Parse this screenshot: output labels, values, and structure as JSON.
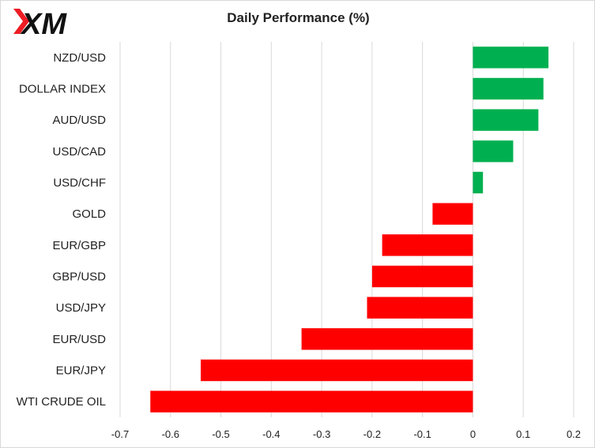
{
  "brand": {
    "logo_text": "XM"
  },
  "chart_data": {
    "type": "bar",
    "orientation": "horizontal",
    "title": "Daily Performance  (%)",
    "categories": [
      "NZD/USD",
      "DOLLAR INDEX",
      "AUD/USD",
      "USD/CAD",
      "USD/CHF",
      "GOLD",
      "EUR/GBP",
      "GBP/USD",
      "USD/JPY",
      "EUR/USD",
      "EUR/JPY",
      "WTI CRUDE OIL"
    ],
    "values": [
      0.15,
      0.14,
      0.13,
      0.08,
      0.02,
      -0.08,
      -0.18,
      -0.2,
      -0.21,
      -0.34,
      -0.54,
      -0.64
    ],
    "xlim": [
      -0.7,
      0.2
    ],
    "xticks": [
      -0.7,
      -0.6,
      -0.5,
      -0.4,
      -0.3,
      -0.2,
      -0.1,
      0,
      0.1,
      0.2
    ],
    "xtick_labels": [
      "-0.7",
      "-0.6",
      "-0.5",
      "-0.4",
      "-0.3",
      "-0.2",
      "-0.1",
      "0",
      "0.1",
      "0.2"
    ],
    "grid": true,
    "legend": "none",
    "colors": {
      "positive": "#00b050",
      "negative": "#ff0000",
      "grid": "#d9d9d9"
    }
  }
}
